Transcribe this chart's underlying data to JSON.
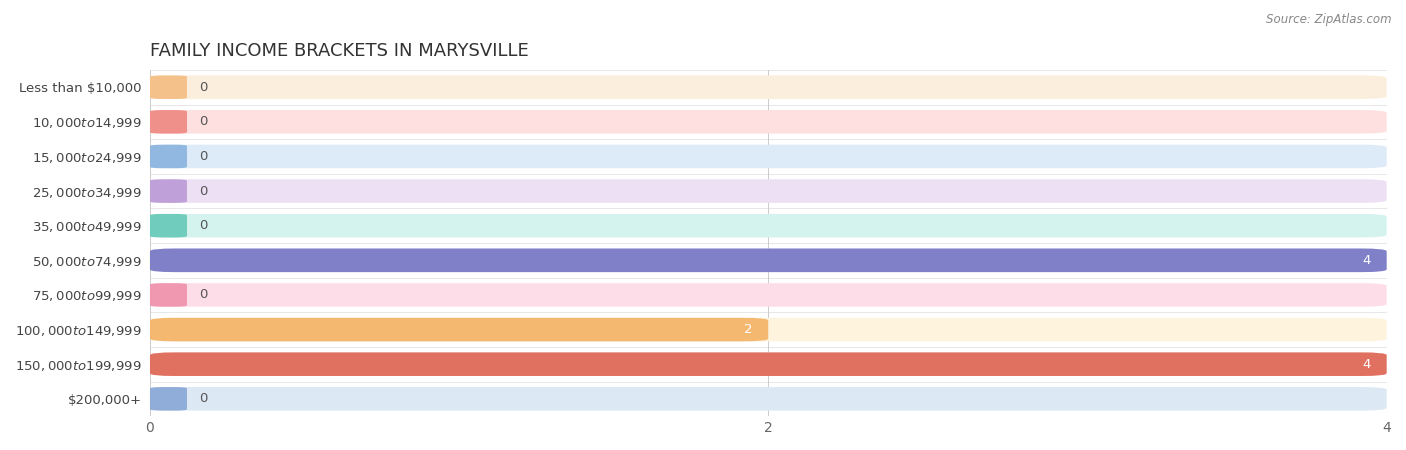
{
  "title": "Family Income Brackets in Marysville",
  "source": "Source: ZipAtlas.com",
  "categories": [
    "Less than $10,000",
    "$10,000 to $14,999",
    "$15,000 to $24,999",
    "$25,000 to $34,999",
    "$35,000 to $49,999",
    "$50,000 to $74,999",
    "$75,000 to $99,999",
    "$100,000 to $149,999",
    "$150,000 to $199,999",
    "$200,000+"
  ],
  "values": [
    0,
    0,
    0,
    0,
    0,
    4,
    0,
    2,
    4,
    0
  ],
  "bar_colors": [
    "#f5c18a",
    "#f0908a",
    "#90b8e0",
    "#c0a0d8",
    "#70ccbc",
    "#8080c8",
    "#f098b0",
    "#f5b870",
    "#e07060",
    "#90acd8"
  ],
  "background_colors": [
    "#fceedd",
    "#fde0df",
    "#ddeaf7",
    "#ede0f5",
    "#d5f3ee",
    "#ddddf5",
    "#fddde8",
    "#fef3dc",
    "#fde0da",
    "#dde8f5"
  ],
  "xlim": [
    0,
    4
  ],
  "xticks": [
    0,
    2,
    4
  ],
  "title_fontsize": 13,
  "bar_height": 0.68,
  "label_fontsize": 9.5,
  "value_fontsize": 9.5
}
